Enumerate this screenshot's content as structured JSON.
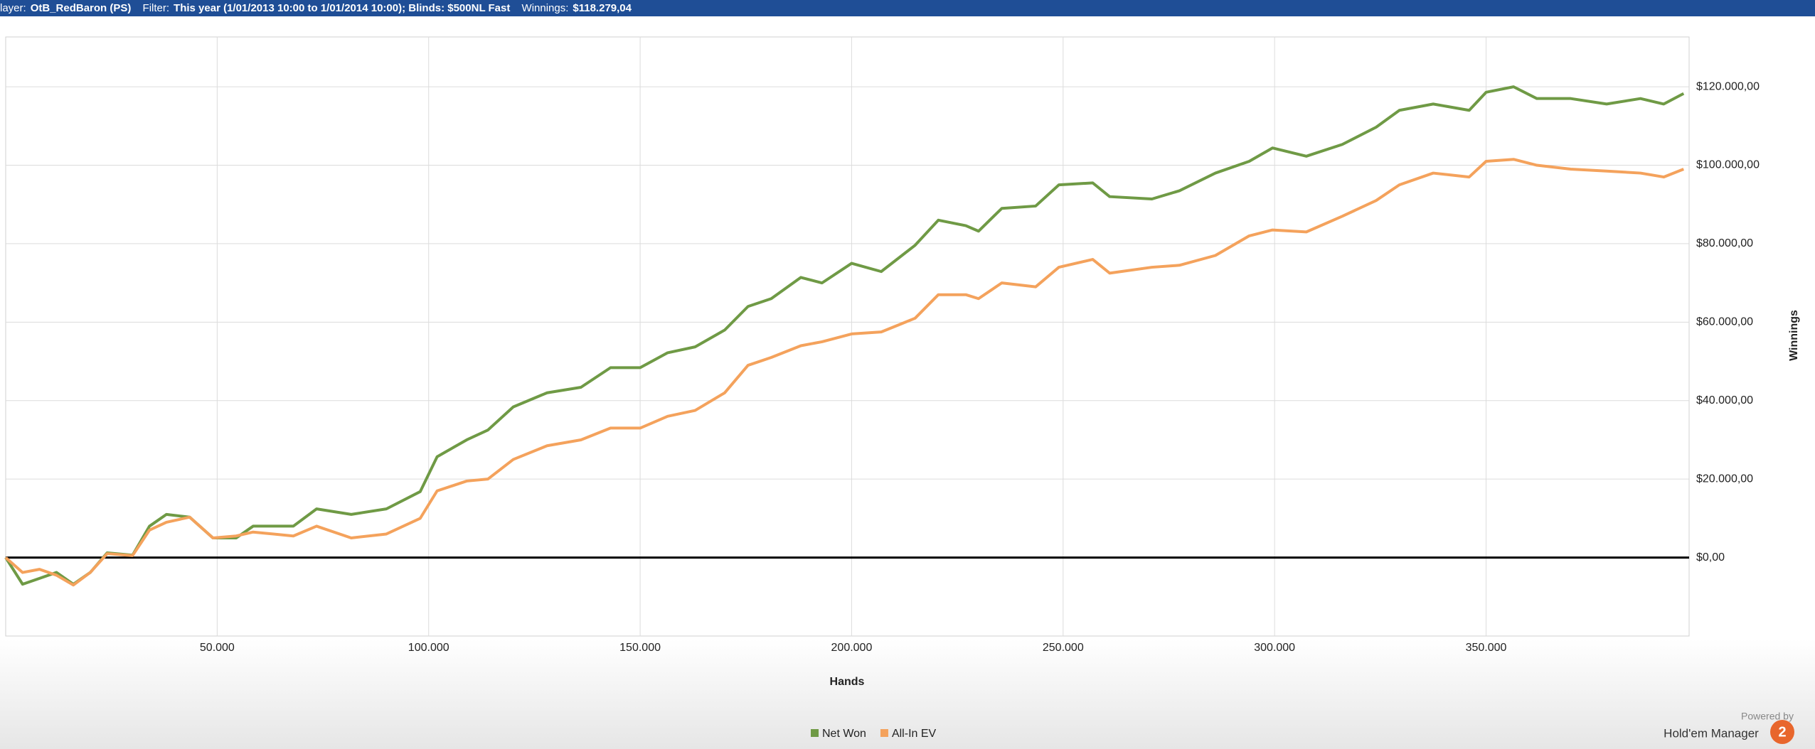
{
  "header": {
    "items": [
      {
        "label": "layer:",
        "value": "OtB_RedBaron (PS)"
      },
      {
        "label": "Filter:",
        "value": "This year (1/01/2013 10:00 to 1/01/2014 10:00); Blinds: $500NL Fast"
      },
      {
        "label": "Winnings:",
        "value": "$118.279,04"
      }
    ]
  },
  "branding": {
    "powered_by": "Powered by",
    "product": "Hold'em Manager",
    "logo": "2"
  },
  "chart_data": {
    "type": "line",
    "x_label": "Hands",
    "y_label": "Winnings",
    "xlim": [
      0,
      398000
    ],
    "ylim": [
      -20000,
      132700
    ],
    "xticks": [
      {
        "value": 50000,
        "label": "50.000"
      },
      {
        "value": 100000,
        "label": "100.000"
      },
      {
        "value": 150000,
        "label": "150.000"
      },
      {
        "value": 200000,
        "label": "200.000"
      },
      {
        "value": 250000,
        "label": "250.000"
      },
      {
        "value": 300000,
        "label": "300.000"
      },
      {
        "value": 350000,
        "label": "350.000"
      }
    ],
    "yticks": [
      {
        "value": 0,
        "label": "$0,00"
      },
      {
        "value": 20000,
        "label": "$20.000,00"
      },
      {
        "value": 40000,
        "label": "$40.000,00"
      },
      {
        "value": 60000,
        "label": "$60.000,00"
      },
      {
        "value": 80000,
        "label": "$80.000,00"
      },
      {
        "value": 100000,
        "label": "$100.000,00"
      },
      {
        "value": 120000,
        "label": "$120.000,00"
      }
    ],
    "grid": true,
    "x": [
      0,
      4000,
      8000,
      12000,
      16000,
      20000,
      24000,
      30000,
      34000,
      38000,
      43500,
      49000,
      54500,
      58500,
      68000,
      73500,
      81700,
      90000,
      98000,
      102000,
      109000,
      114000,
      120000,
      128000,
      136000,
      143000,
      150000,
      156500,
      163000,
      170000,
      175500,
      181000,
      188000,
      193000,
      200000,
      207000,
      215000,
      220500,
      227000,
      230000,
      235500,
      243500,
      249000,
      257000,
      261000,
      271000,
      277500,
      286000,
      294000,
      299500,
      307500,
      316000,
      324000,
      329500,
      337500,
      346000,
      350000,
      356500,
      362000,
      370000,
      378500,
      386500,
      392000,
      396700
    ],
    "series": [
      {
        "name": "Net Won",
        "color": "#6f9a45",
        "values": [
          0,
          -6800,
          -5300,
          -3800,
          -6800,
          -3800,
          1200,
          600,
          8000,
          11000,
          10300,
          5000,
          5000,
          8000,
          8000,
          12400,
          11000,
          12400,
          16800,
          25700,
          30000,
          32500,
          38400,
          42000,
          43400,
          48400,
          48400,
          52200,
          53700,
          58000,
          64000,
          66000,
          71400,
          70000,
          75000,
          72900,
          79600,
          86000,
          84600,
          83200,
          89000,
          89600,
          95000,
          95500,
          92000,
          91400,
          93500,
          98000,
          101000,
          104400,
          102300,
          105300,
          109700,
          114000,
          115600,
          114000,
          118600,
          120000,
          117000,
          117000,
          115600,
          117000,
          115600,
          118279
        ]
      },
      {
        "name": "All-In EV",
        "color": "#f4a25c",
        "values": [
          0,
          -3800,
          -3000,
          -4500,
          -7000,
          -3800,
          1000,
          500,
          7000,
          9000,
          10300,
          5000,
          5500,
          6500,
          5500,
          8000,
          5000,
          6000,
          10000,
          17000,
          19500,
          20000,
          25000,
          28500,
          30000,
          33000,
          33000,
          36000,
          37500,
          42000,
          49000,
          51000,
          54000,
          55000,
          57000,
          57500,
          61000,
          67000,
          67000,
          66000,
          70000,
          69000,
          74000,
          76000,
          72500,
          74000,
          74500,
          77000,
          82000,
          83500,
          83000,
          87000,
          91000,
          95000,
          98000,
          97000,
          101000,
          101500,
          100000,
          99000,
          98500,
          98000,
          97000,
          99000
        ]
      }
    ]
  }
}
